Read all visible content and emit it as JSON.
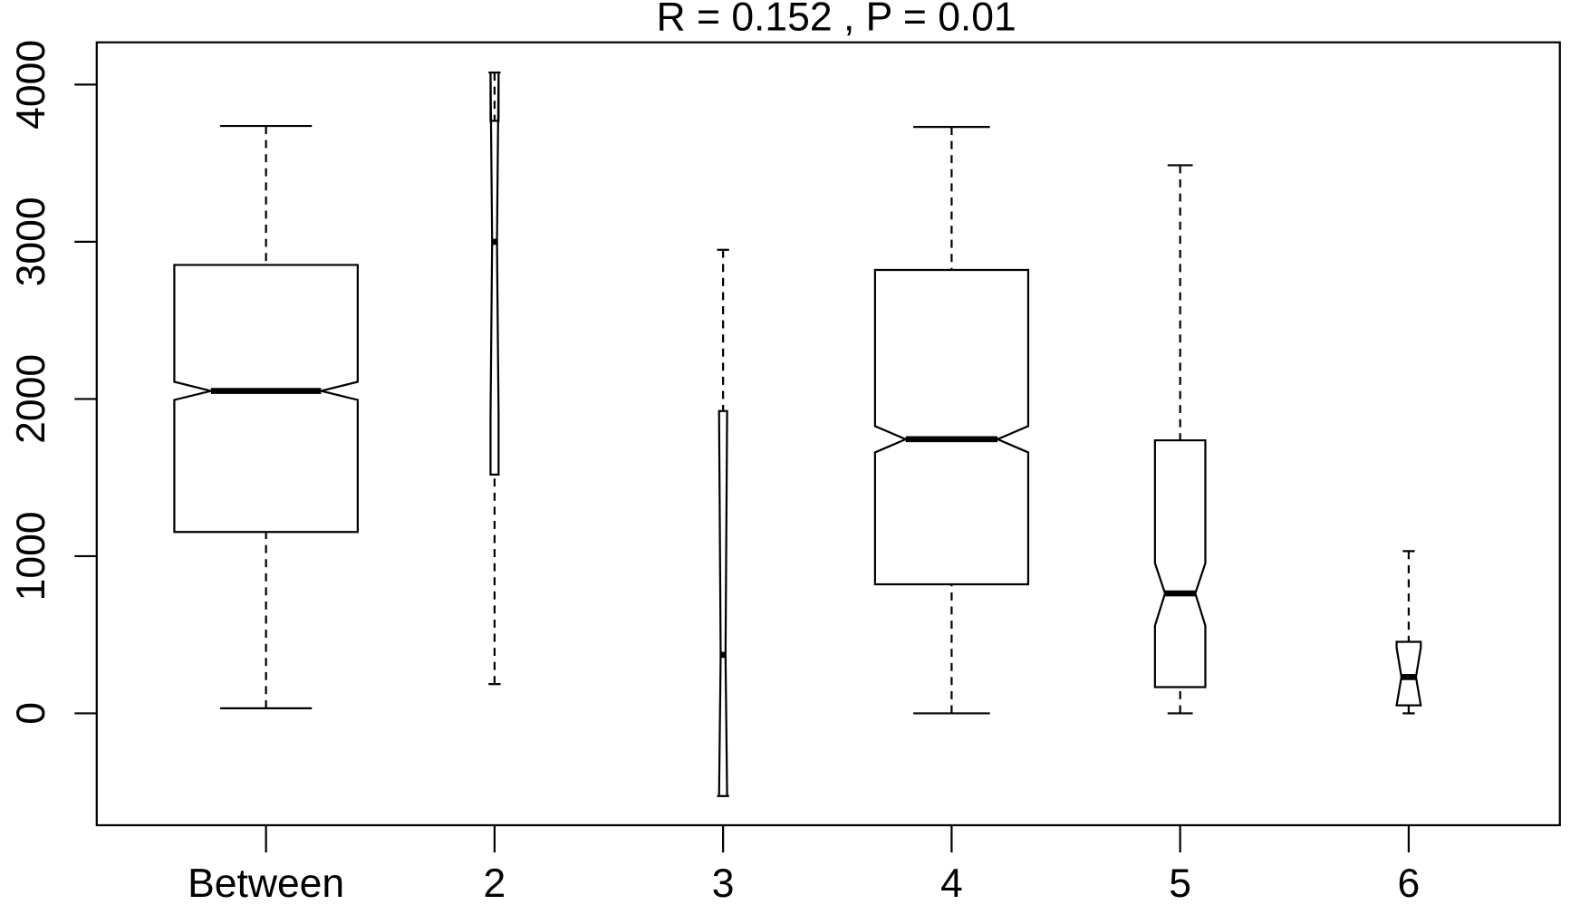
{
  "chart_data": {
    "type": "boxplot",
    "title": "R =  0.152 ,  P =  0.01",
    "categories": [
      "Between",
      "2",
      "3",
      "4",
      "5",
      "6"
    ],
    "boxes": [
      {
        "min": 32,
        "q1": 1154,
        "median": 2051,
        "q3": 2853,
        "max": 3737,
        "notch_lo": 1994,
        "notch_hi": 2109
      },
      {
        "min": 186,
        "q1": 1519,
        "median": 3000,
        "q3": 3770,
        "max": 4077,
        "notch_lo": 1891,
        "notch_hi": 4077
      },
      {
        "min": -526,
        "q1": -526,
        "median": 372,
        "q3": 1923,
        "max": 2949,
        "notch_lo": -526,
        "notch_hi": 1923
      },
      {
        "min": 0,
        "q1": 821,
        "median": 1744,
        "q3": 2821,
        "max": 3731,
        "notch_lo": 1660,
        "notch_hi": 1827
      },
      {
        "min": 0,
        "q1": 167,
        "median": 763,
        "q3": 1737,
        "max": 3487,
        "notch_lo": 558,
        "notch_hi": 955
      },
      {
        "min": 0,
        "q1": 51,
        "median": 231,
        "q3": 455,
        "max": 1032,
        "notch_lo": 51,
        "notch_hi": 417
      }
    ],
    "color": "#000000",
    "ylim": [
      -712,
      4269
    ],
    "yticks": [
      0,
      1000,
      2000,
      3000,
      4000
    ]
  }
}
